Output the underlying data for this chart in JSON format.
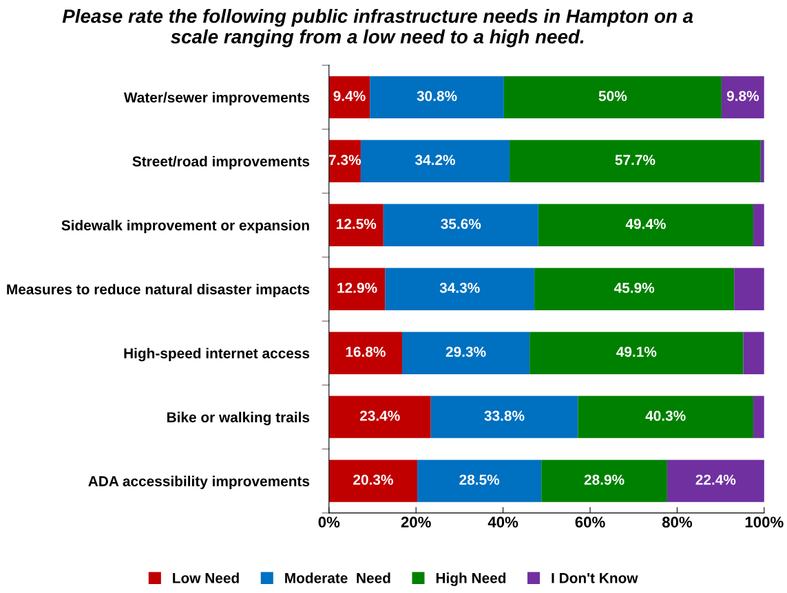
{
  "chart_data": {
    "type": "bar",
    "orientation": "horizontal",
    "stacked": true,
    "title": "Please rate the following public infrastructure needs in Hampton on a\nscale ranging from a low need to a high need.",
    "categories": [
      "Water/sewer improvements",
      "Street/road improvements",
      "Sidewalk improvement or expansion",
      "Measures to reduce natural disaster impacts",
      "High-speed internet access",
      "Bike or walking trails",
      "ADA accessibility improvements"
    ],
    "series": [
      {
        "name": "Low Need",
        "color": "#c00000",
        "values": [
          9.4,
          7.3,
          12.5,
          12.9,
          16.8,
          23.4,
          20.3
        ],
        "value_labels": [
          "9.4%",
          "7.3%",
          "12.5%",
          "12.9%",
          "16.8%",
          "23.4%",
          "20.3%"
        ]
      },
      {
        "name": "Moderate  Need",
        "color": "#0070c0",
        "values": [
          30.8,
          34.2,
          35.6,
          34.3,
          29.3,
          33.8,
          28.5
        ],
        "value_labels": [
          "30.8%",
          "34.2%",
          "35.6%",
          "34.3%",
          "29.3%",
          "33.8%",
          "28.5%"
        ]
      },
      {
        "name": "High Need",
        "color": "#008000",
        "values": [
          50,
          57.7,
          49.4,
          45.9,
          49.1,
          40.3,
          28.9
        ],
        "value_labels": [
          "50%",
          "57.7%",
          "49.4%",
          "45.9%",
          "49.1%",
          "40.3%",
          "28.9%"
        ]
      },
      {
        "name": "I Don't Know",
        "color": "#7030a0",
        "values": [
          9.8,
          0.8,
          2.5,
          6.9,
          4.8,
          2.5,
          22.4
        ],
        "value_labels": [
          "9.8%",
          null,
          null,
          null,
          null,
          null,
          "22.4%"
        ]
      }
    ],
    "xlim": [
      0,
      100
    ],
    "xticks": [
      {
        "value": 0,
        "label": "0%"
      },
      {
        "value": 20,
        "label": "20%"
      },
      {
        "value": 40,
        "label": "40%"
      },
      {
        "value": 60,
        "label": "60%"
      },
      {
        "value": 80,
        "label": "80%"
      },
      {
        "value": 100,
        "label": "100%"
      }
    ],
    "legend": "bottom"
  }
}
